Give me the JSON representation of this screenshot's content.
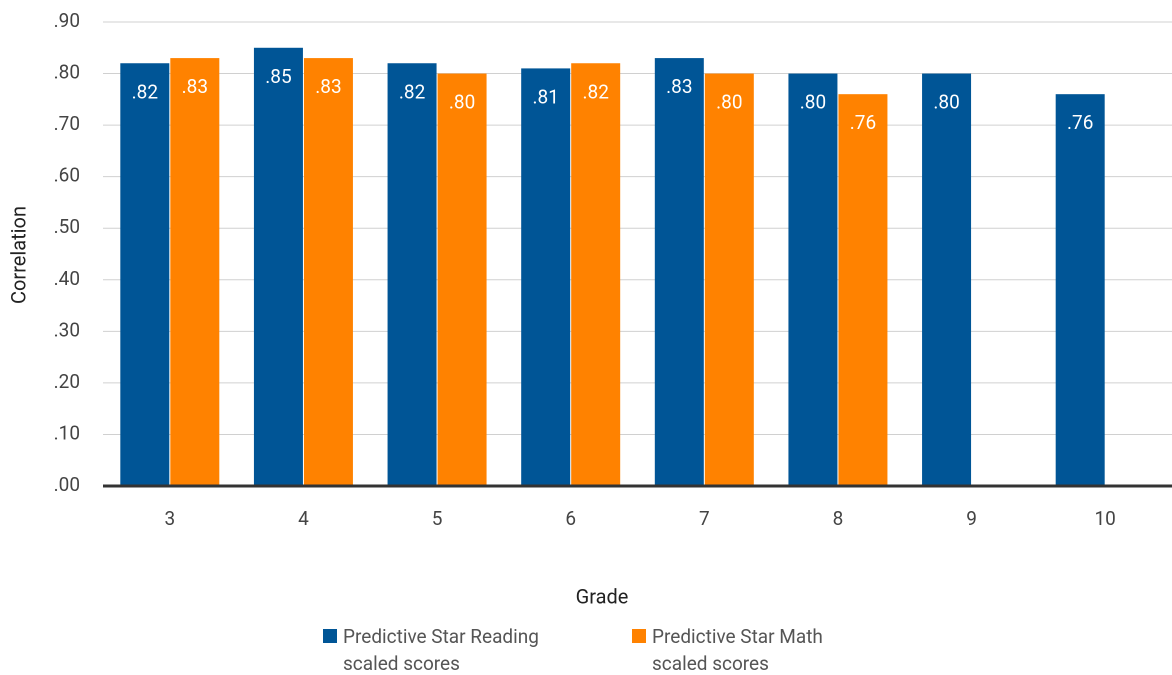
{
  "chart_data": {
    "type": "bar",
    "x_label": "Grade",
    "y_label": "Correlation",
    "categories": [
      "3",
      "4",
      "5",
      "6",
      "7",
      "8",
      "9",
      "10"
    ],
    "series": [
      {
        "name": "Predictive Star Reading scaled scores",
        "color": "#005596",
        "values": [
          0.82,
          0.85,
          0.82,
          0.81,
          0.83,
          0.8,
          0.8,
          0.76
        ],
        "value_labels": [
          ".82",
          ".85",
          ".82",
          ".81",
          ".83",
          ".80",
          ".80",
          ".76"
        ]
      },
      {
        "name": "Predictive Star Math scaled scores",
        "color": "#ff8200",
        "values": [
          0.83,
          0.83,
          0.8,
          0.82,
          0.8,
          0.76,
          null,
          null
        ],
        "value_labels": [
          ".83",
          ".83",
          ".80",
          ".82",
          ".80",
          ".76",
          null,
          null
        ]
      }
    ],
    "ylim": [
      0,
      0.9
    ],
    "yticks": [
      {
        "value": 0,
        "label": ".00"
      },
      {
        "value": 0.1,
        "label": ".10"
      },
      {
        "value": 0.2,
        "label": ".20"
      },
      {
        "value": 0.3,
        "label": ".30"
      },
      {
        "value": 0.4,
        "label": ".40"
      },
      {
        "value": 0.5,
        "label": ".50"
      },
      {
        "value": 0.6,
        "label": ".60"
      },
      {
        "value": 0.7,
        "label": ".70"
      },
      {
        "value": 0.8,
        "label": ".80"
      },
      {
        "value": 0.9,
        "label": ".90"
      }
    ],
    "grid": true
  }
}
